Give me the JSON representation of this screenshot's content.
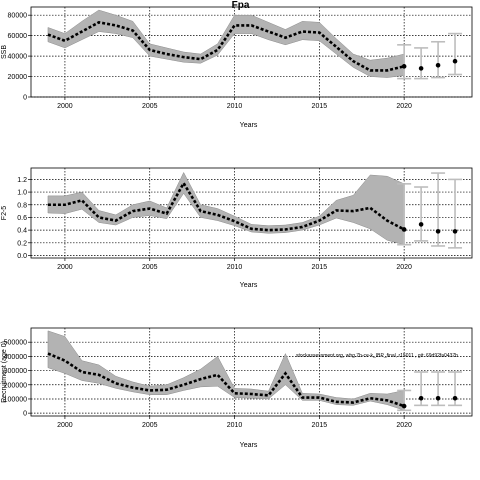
{
  "chart_data": [
    {
      "type": "line",
      "title": "Fpa",
      "xlabel": "Years",
      "ylabel": "SSB",
      "xlim": [
        1998,
        2024
      ],
      "ylim": [
        0,
        88000
      ],
      "x_ticks": [
        2000,
        2005,
        2010,
        2015,
        2020
      ],
      "y_ticks": [
        0,
        20000,
        40000,
        60000,
        80000
      ],
      "y_tick_labels": [
        "0",
        "20000",
        "40000",
        "60000",
        "80000"
      ],
      "grid": true,
      "band_color": "#b3b3b3",
      "line_color": "#000000",
      "x": [
        1999,
        2000,
        2001,
        2002,
        2003,
        2004,
        2005,
        2006,
        2007,
        2008,
        2009,
        2010,
        2011,
        2012,
        2013,
        2014,
        2015,
        2016,
        2017,
        2018,
        2019,
        2020
      ],
      "median": [
        61000,
        55000,
        64000,
        73000,
        70000,
        65000,
        46000,
        42000,
        39000,
        37000,
        46000,
        70000,
        70000,
        64000,
        58000,
        64000,
        63000,
        49000,
        35000,
        26000,
        26000,
        30000
      ],
      "lower": [
        54000,
        48000,
        56000,
        64000,
        62000,
        58000,
        40000,
        37000,
        34000,
        33000,
        41000,
        62000,
        62000,
        56000,
        51000,
        56000,
        55000,
        42000,
        29000,
        20000,
        19000,
        21000
      ],
      "upper": [
        68000,
        62000,
        74000,
        85000,
        80000,
        74000,
        52000,
        48000,
        44000,
        42000,
        52000,
        80000,
        80000,
        73000,
        66000,
        74000,
        73000,
        57000,
        42000,
        36000,
        38000,
        42000
      ],
      "projection": {
        "x": [
          2020,
          2021,
          2022,
          2023
        ],
        "median": [
          30000,
          28000,
          31000,
          35000
        ],
        "lower": [
          18000,
          18000,
          19000,
          22000
        ],
        "upper": [
          51000,
          48000,
          54000,
          62000
        ]
      }
    },
    {
      "type": "line",
      "title": "",
      "xlabel": "Years",
      "ylabel": "F2-5",
      "xlim": [
        1998,
        2024
      ],
      "ylim": [
        -0.04,
        1.38
      ],
      "x_ticks": [
        2000,
        2005,
        2010,
        2015,
        2020
      ],
      "y_ticks": [
        0,
        0.2,
        0.4,
        0.6,
        0.8,
        1.0,
        1.2
      ],
      "y_tick_labels": [
        "0.0",
        "0.2",
        "0.4",
        "0.6",
        "0.8",
        "1.0",
        "1.2"
      ],
      "grid": true,
      "band_color": "#b3b3b3",
      "line_color": "#000000",
      "x": [
        1999,
        2000,
        2001,
        2002,
        2003,
        2004,
        2005,
        2006,
        2007,
        2008,
        2009,
        2010,
        2011,
        2012,
        2013,
        2014,
        2015,
        2016,
        2017,
        2018,
        2019,
        2020
      ],
      "median": [
        0.8,
        0.8,
        0.87,
        0.6,
        0.55,
        0.7,
        0.74,
        0.66,
        1.14,
        0.7,
        0.64,
        0.54,
        0.42,
        0.4,
        0.41,
        0.45,
        0.55,
        0.71,
        0.7,
        0.75,
        0.55,
        0.41
      ],
      "lower": [
        0.67,
        0.66,
        0.73,
        0.52,
        0.48,
        0.6,
        0.63,
        0.58,
        0.98,
        0.6,
        0.55,
        0.47,
        0.37,
        0.35,
        0.36,
        0.4,
        0.48,
        0.59,
        0.52,
        0.42,
        0.24,
        0.17
      ],
      "upper": [
        0.94,
        0.94,
        1.0,
        0.71,
        0.64,
        0.8,
        0.86,
        0.75,
        1.31,
        0.8,
        0.74,
        0.62,
        0.49,
        0.47,
        0.48,
        0.52,
        0.62,
        0.87,
        0.95,
        1.27,
        1.25,
        1.13
      ],
      "projection": {
        "x": [
          2020,
          2021,
          2022,
          2023
        ],
        "median": [
          0.41,
          0.49,
          0.38,
          0.38
        ],
        "lower": [
          0.17,
          0.23,
          0.15,
          0.12
        ],
        "upper": [
          1.13,
          1.08,
          1.3,
          1.2
        ]
      }
    },
    {
      "type": "line",
      "title": "",
      "xlabel": "Years",
      "ylabel": "Recruitment (age 0)",
      "annotation": "stockassessment.org, whg.7b-ce-k_IBP_final, r15011 , git: 69d92fa0437b",
      "xlim": [
        1998,
        2024
      ],
      "ylim": [
        -20000,
        600000
      ],
      "x_ticks": [
        2000,
        2005,
        2010,
        2015,
        2020
      ],
      "y_ticks": [
        0,
        100000,
        200000,
        300000,
        400000,
        500000
      ],
      "y_tick_labels": [
        "0",
        "100000",
        "200000",
        "300000",
        "400000",
        "500000"
      ],
      "grid": true,
      "band_color": "#b3b3b3",
      "line_color": "#000000",
      "x": [
        1999,
        2000,
        2001,
        2002,
        2003,
        2004,
        2005,
        2006,
        2007,
        2008,
        2009,
        2010,
        2011,
        2012,
        2013,
        2014,
        2015,
        2016,
        2017,
        2018,
        2019,
        2020
      ],
      "median": [
        420000,
        370000,
        290000,
        270000,
        210000,
        180000,
        160000,
        165000,
        200000,
        240000,
        270000,
        140000,
        135000,
        125000,
        280000,
        110000,
        110000,
        80000,
        75000,
        105000,
        90000,
        50000
      ],
      "lower": [
        320000,
        280000,
        230000,
        210000,
        175000,
        150000,
        130000,
        130000,
        160000,
        185000,
        190000,
        110000,
        105000,
        100000,
        200000,
        90000,
        90000,
        60000,
        55000,
        85000,
        60000,
        20000
      ],
      "upper": [
        580000,
        540000,
        370000,
        340000,
        260000,
        220000,
        190000,
        200000,
        250000,
        310000,
        400000,
        175000,
        170000,
        155000,
        420000,
        140000,
        135000,
        110000,
        100000,
        140000,
        135000,
        160000
      ],
      "projection": {
        "x": [
          2020,
          2021,
          2022,
          2023
        ],
        "median": [
          50000,
          105000,
          105000,
          105000
        ],
        "lower": [
          20000,
          55000,
          55000,
          55000
        ],
        "upper": [
          160000,
          290000,
          290000,
          290000
        ]
      }
    }
  ]
}
